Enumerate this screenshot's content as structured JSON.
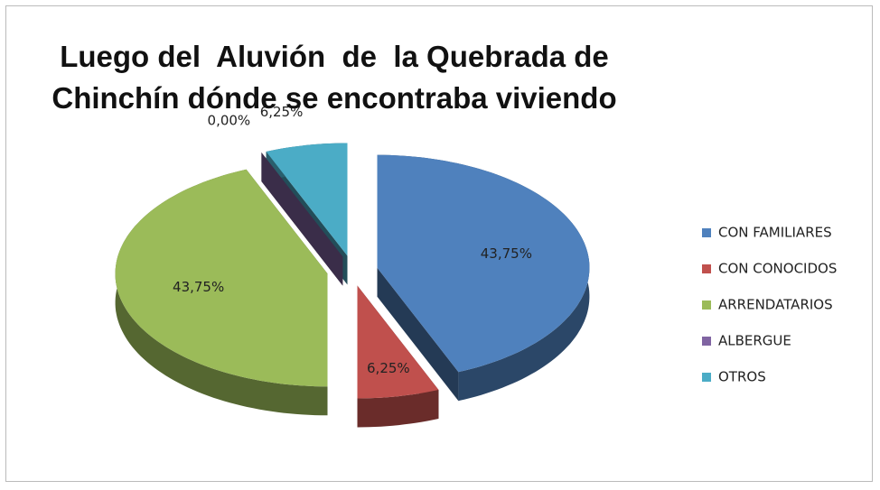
{
  "chart_data": {
    "type": "pie",
    "title": "Luego del  Aluvión  de  la Quebrada de Chinchín dónde se encontraba viviendo",
    "categories": [
      "CON FAMILIARES",
      "CON CONOCIDOS",
      "ARRENDATARIOS",
      "ALBERGUE",
      "OTROS"
    ],
    "values": [
      43.75,
      6.25,
      43.75,
      0,
      6.25
    ],
    "value_labels": [
      "43,75%",
      "6,25%",
      "43,75%",
      "0,00%",
      "6,25%"
    ],
    "colors": [
      "#4f81bd",
      "#c0504d",
      "#9bbb59",
      "#8064a2",
      "#4bacc6"
    ],
    "legend": "right"
  }
}
